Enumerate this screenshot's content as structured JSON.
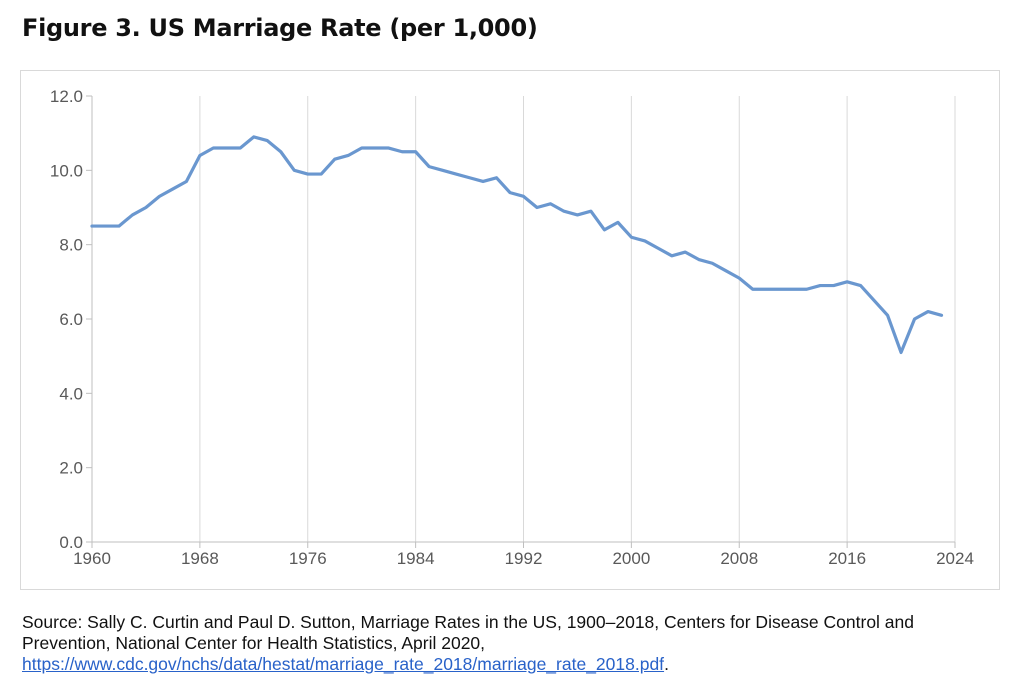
{
  "figure": {
    "title": "Figure 3. US Marriage Rate (per 1,000)"
  },
  "source": {
    "text": "Source: Sally C. Curtin and Paul D. Sutton, Marriage Rates in the US, 1900–2018, Centers for Disease Control and Prevention, National Center for Health Statistics, April 2020, ",
    "link": "https://www.cdc.gov/nchs/data/hestat/marriage_rate_2018/marriage_rate_2018.pdf",
    "end": "."
  },
  "colors": {
    "line": "#6a97cf",
    "grid": "#d9d9d9",
    "axis": "#bfbfbf",
    "tick_text": "#595959",
    "link": "#2962c9"
  },
  "chart_data": {
    "type": "line",
    "title": "Figure 3. US Marriage Rate (per 1,000)",
    "xlabel": "",
    "ylabel": "",
    "xlim": [
      1960,
      2024
    ],
    "ylim": [
      0,
      12
    ],
    "x_ticks": [
      1960,
      1968,
      1976,
      1984,
      1992,
      2000,
      2008,
      2016,
      2024
    ],
    "y_ticks": [
      "0.0",
      "2.0",
      "4.0",
      "6.0",
      "8.0",
      "10.0",
      "12.0"
    ],
    "grid": "vertical",
    "legend": "none",
    "series": [
      {
        "x": [
          1960,
          1961,
          1962,
          1963,
          1964,
          1965,
          1966,
          1967,
          1968,
          1969,
          1970,
          1971,
          1972,
          1973,
          1974,
          1975,
          1976,
          1977,
          1978,
          1979,
          1980,
          1981,
          1982,
          1983,
          1984,
          1985,
          1986,
          1987,
          1988,
          1989,
          1990,
          1991,
          1992,
          1993,
          1994,
          1995,
          1996,
          1997,
          1998,
          1999,
          2000,
          2001,
          2002,
          2003,
          2004,
          2005,
          2006,
          2007,
          2008,
          2009,
          2010,
          2011,
          2012,
          2013,
          2014,
          2015,
          2016,
          2017,
          2018,
          2019,
          2020,
          2021,
          2022,
          2023
        ],
        "y": [
          8.5,
          8.5,
          8.5,
          8.8,
          9.0,
          9.3,
          9.5,
          9.7,
          10.4,
          10.6,
          10.6,
          10.6,
          10.9,
          10.8,
          10.5,
          10.0,
          9.9,
          9.9,
          10.3,
          10.4,
          10.6,
          10.6,
          10.6,
          10.5,
          10.5,
          10.1,
          10.0,
          9.9,
          9.8,
          9.7,
          9.8,
          9.4,
          9.3,
          9.0,
          9.1,
          8.9,
          8.8,
          8.9,
          8.4,
          8.6,
          8.2,
          8.1,
          7.9,
          7.7,
          7.8,
          7.6,
          7.5,
          7.3,
          7.1,
          6.8,
          6.8,
          6.8,
          6.8,
          6.8,
          6.9,
          6.9,
          7.0,
          6.9,
          6.5,
          6.1,
          5.1,
          6.0,
          6.2,
          6.1
        ]
      }
    ]
  }
}
